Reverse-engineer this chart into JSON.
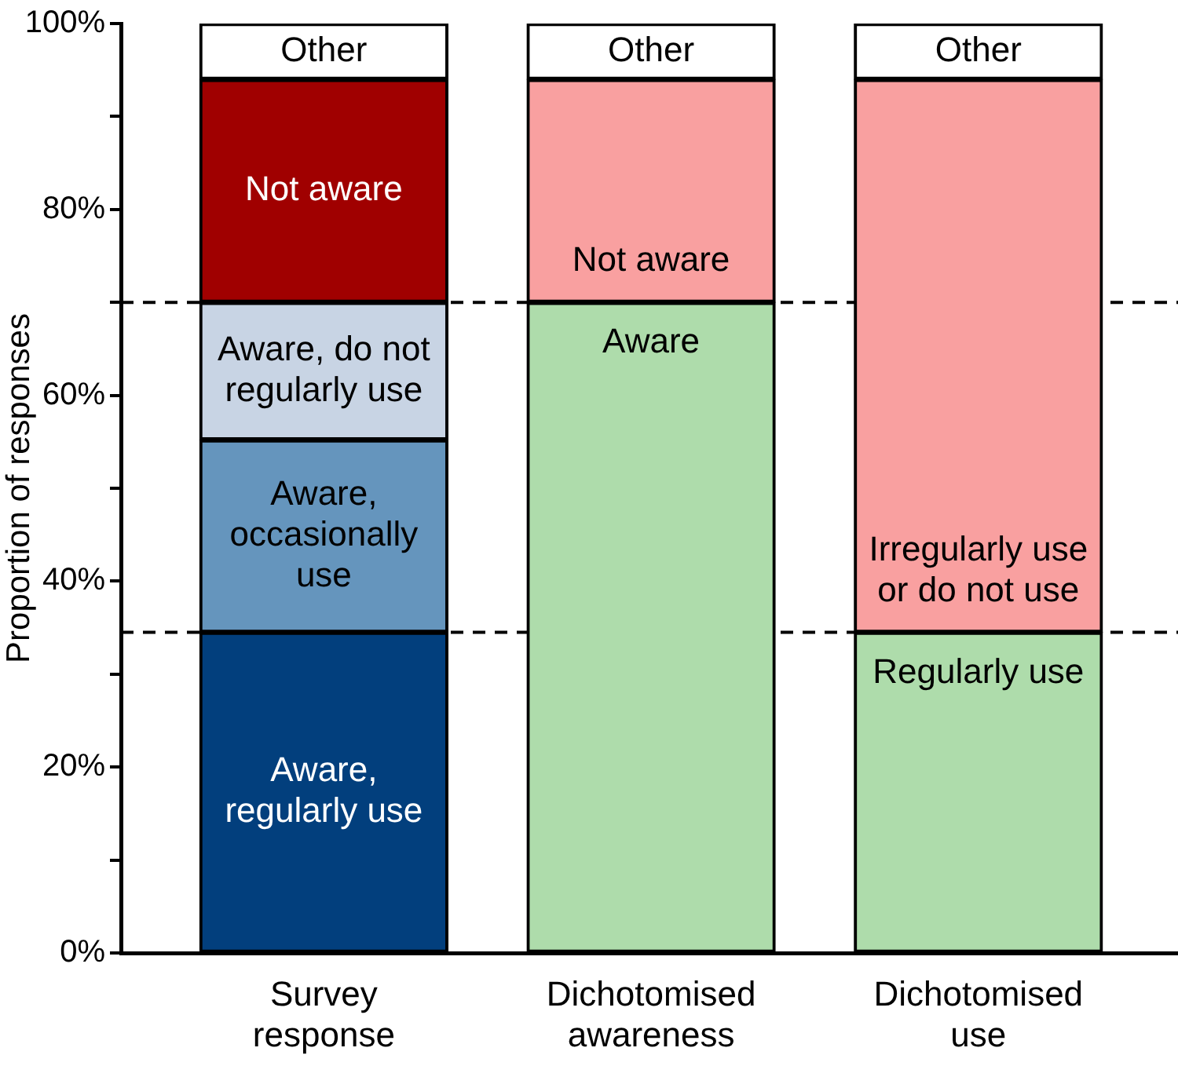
{
  "chart_data": {
    "type": "bar",
    "stacked": true,
    "ylabel": "Proportion of responses",
    "categories": [
      "Survey response",
      "Dichotomised awareness",
      "Dichotomised use"
    ],
    "series": [
      {
        "name": "Aware, regularly use",
        "color": "#023f7d",
        "values": [
          34.5,
          null,
          null
        ]
      },
      {
        "name": "Aware",
        "color": "#aedcab",
        "values": [
          null,
          70,
          null
        ]
      },
      {
        "name": "Regularly use",
        "color": "#aedcab",
        "values": [
          null,
          null,
          34.5
        ]
      },
      {
        "name": "Aware, occasionally use",
        "color": "#6595bd",
        "values": [
          20.7,
          null,
          null
        ]
      },
      {
        "name": "Irregularly use or do not use",
        "color": "#f9a0a0",
        "values": [
          null,
          null,
          59.5
        ]
      },
      {
        "name": "Aware, do not regularly use",
        "color": "#c8d4e4",
        "values": [
          14.8,
          null,
          null
        ]
      },
      {
        "name": "Not aware",
        "color": "#a00000",
        "values": [
          24,
          null,
          null
        ]
      },
      {
        "name": "Not aware",
        "color": "#f9a0a0",
        "values": [
          null,
          24,
          null
        ]
      },
      {
        "name": "Other",
        "color": "#ffffff",
        "values": [
          6,
          6,
          6
        ]
      }
    ],
    "ylim": [
      0,
      100
    ],
    "yticks": [
      {
        "value": 0,
        "label": "0%"
      },
      {
        "value": 10,
        "label": null
      },
      {
        "value": 20,
        "label": "20%"
      },
      {
        "value": 30,
        "label": null
      },
      {
        "value": 40,
        "label": "40%"
      },
      {
        "value": 50,
        "label": null
      },
      {
        "value": 60,
        "label": "60%"
      },
      {
        "value": 70,
        "label": null
      },
      {
        "value": 80,
        "label": "80%"
      },
      {
        "value": 90,
        "label": null
      },
      {
        "value": 100,
        "label": "100%"
      }
    ],
    "ref_lines": [
      {
        "axis": "y",
        "value": 70,
        "color": "#000000",
        "line_style": "dashed"
      },
      {
        "axis": "y",
        "value": 34.5,
        "color": "#000000",
        "line_style": "dashed"
      }
    ]
  }
}
